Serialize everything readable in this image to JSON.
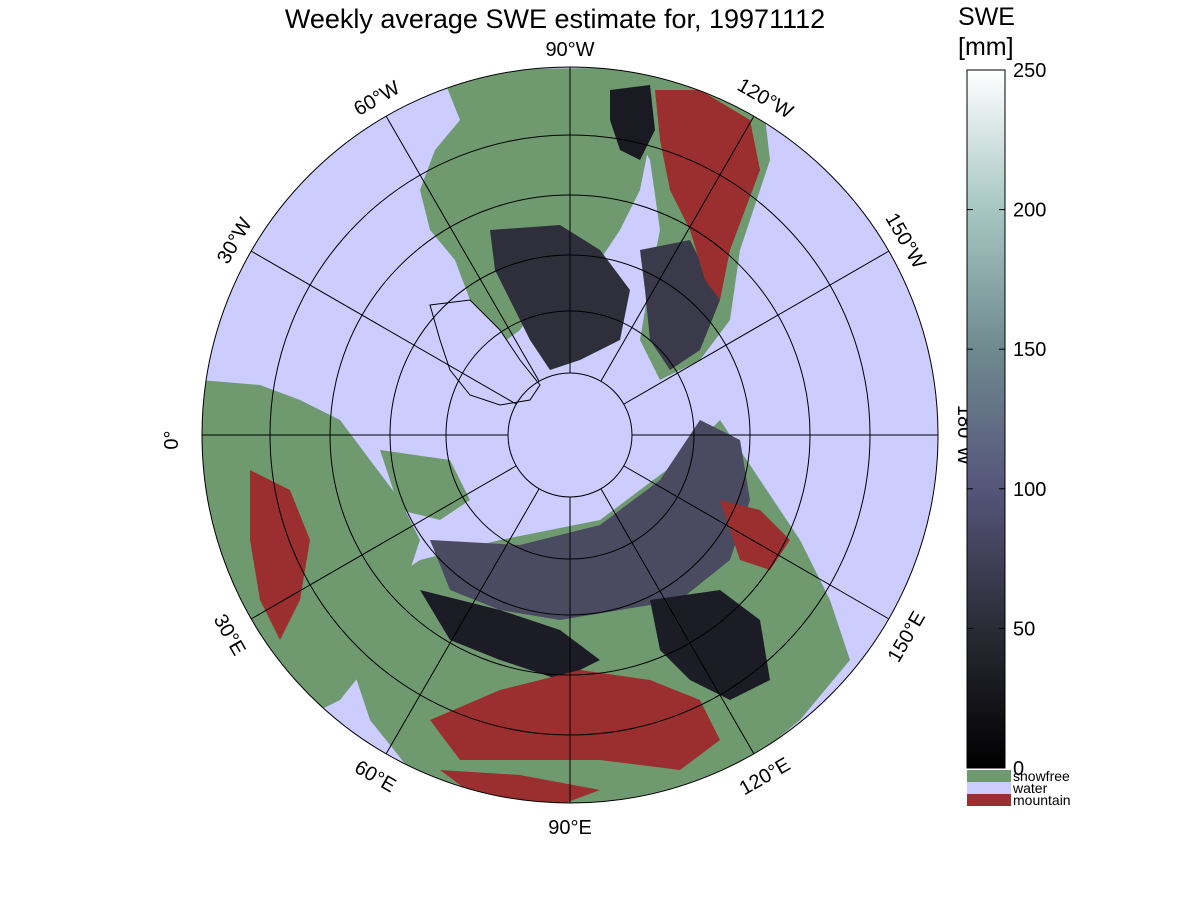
{
  "title": "Weekly average SWE estimate for, 19971112",
  "colorbar": {
    "title_line1": "SWE",
    "title_line2": "[mm]",
    "ticks": [
      "0",
      "50",
      "100",
      "150",
      "200",
      "250"
    ],
    "tick_values": [
      0,
      50,
      100,
      150,
      200,
      250
    ],
    "range": [
      0,
      250
    ]
  },
  "longitude_labels": {
    "w90": "90°W",
    "w60": "60°W",
    "w30": "30°W",
    "e0": "0°",
    "w120": "120°W",
    "w150": "150°W",
    "w180": "180°W",
    "e30": "30°E",
    "e60": "60°E",
    "e90": "90°E",
    "e120": "120°E",
    "e150": "150°E"
  },
  "legend": [
    {
      "label": "snowfree",
      "color": "#6f9a6f"
    },
    {
      "label": "water",
      "color": "#ccccff"
    },
    {
      "label": "mountain",
      "color": "#9b2f2f"
    }
  ],
  "colors": {
    "water": "#ccccff",
    "snowfree": "#6f9a6f",
    "mountain": "#9b2f2f",
    "snow_dark": "#1a1a22",
    "snow_mid": "#4a4a60",
    "colorbar_top": "#ffffff",
    "colorbar_bottom": "#000000"
  }
}
